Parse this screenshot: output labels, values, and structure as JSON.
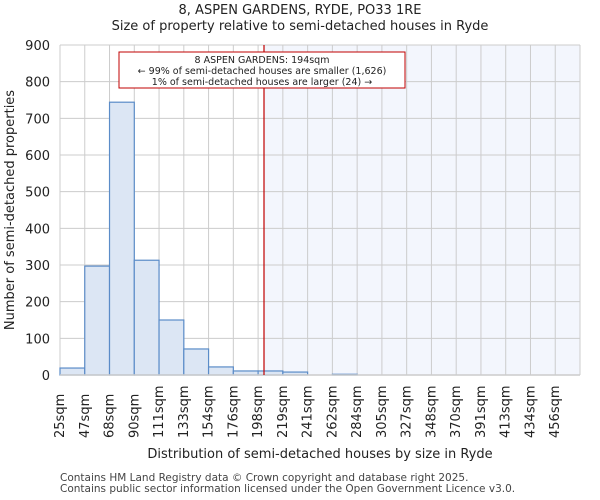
{
  "header": {
    "title": "8, ASPEN GARDENS, RYDE, PO33 1RE",
    "subtitle": "Size of property relative to semi-detached houses in Ryde"
  },
  "annotation": {
    "line1": "8 ASPEN GARDENS: 194sqm",
    "line2": "← 99% of semi-detached houses are smaller (1,626)",
    "line3": "1% of semi-detached houses are larger (24) →"
  },
  "footer": {
    "line1": "Contains HM Land Registry data © Crown copyright and database right 2025.",
    "line2": "Contains public sector information licensed under the Open Government Licence v3.0."
  },
  "colors": {
    "bar_fill": "#dce6f4",
    "bar_edge": "#5b8cc8",
    "marker_line": "#c00000",
    "highlight_region": "#f3f6fd",
    "grid": "#cccccc"
  },
  "chart_data": {
    "type": "bar",
    "title": "8, ASPEN GARDENS, RYDE, PO33 1RE",
    "subtitle": "Size of property relative to semi-detached houses in Ryde",
    "xlabel": "Distribution of semi-detached houses by size in Ryde",
    "ylabel": "Number of semi-detached properties",
    "categories": [
      "25sqm",
      "47sqm",
      "68sqm",
      "90sqm",
      "111sqm",
      "133sqm",
      "154sqm",
      "176sqm",
      "198sqm",
      "219sqm",
      "241sqm",
      "262sqm",
      "284sqm",
      "305sqm",
      "327sqm",
      "348sqm",
      "370sqm",
      "391sqm",
      "413sqm",
      "434sqm",
      "456sqm"
    ],
    "values": [
      19,
      297,
      744,
      313,
      150,
      71,
      22,
      11,
      11,
      8,
      0,
      2,
      0,
      0,
      0,
      0,
      0,
      0,
      0,
      0,
      0
    ],
    "ylim": [
      0,
      900
    ],
    "yticks": [
      0,
      100,
      200,
      300,
      400,
      500,
      600,
      700,
      800,
      900
    ],
    "grid": true,
    "marker": {
      "label": "8 ASPEN GARDENS",
      "value_sqm": 194
    },
    "annotation": [
      "8 ASPEN GARDENS: 194sqm",
      "← 99% of semi-detached houses are smaller (1,626)",
      "1% of semi-detached houses are larger (24) →"
    ]
  }
}
